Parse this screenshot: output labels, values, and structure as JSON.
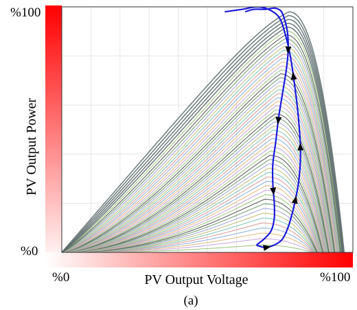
{
  "figure": {
    "caption": "(a)"
  },
  "chart_data": {
    "type": "line",
    "title": "",
    "xlabel": "PV Output Voltage",
    "ylabel": "PV Output Power",
    "xlim": [
      0,
      100
    ],
    "ylim": [
      0,
      100
    ],
    "x_ticks": [
      {
        "value": 0,
        "label": "%0"
      },
      {
        "value": 100,
        "label": "%100"
      }
    ],
    "y_ticks": [
      {
        "value": 0,
        "label": "%0"
      },
      {
        "value": 100,
        "label": "%100"
      }
    ],
    "grid": true,
    "x_axis_gradient": {
      "from": "#ffffff",
      "to": "#ff0000"
    },
    "y_axis_gradient": {
      "from": "#ffffff",
      "to": "#ff0000"
    },
    "pv_curve_family": {
      "count": 56,
      "peak_voltage_min": 68,
      "peak_voltage_max": 78,
      "peak_power_min": 3,
      "peak_power_max": 98,
      "open_circuit_voltage_min": 86,
      "open_circuit_voltage_max": 97,
      "color_palette": [
        "#8fbf6f",
        "#c59bd8",
        "#e0b070",
        "#7fa7d8",
        "#d88f8f",
        "#6fbfa8",
        "#b8b86a",
        "#9a9ad8",
        "#5f8f5f",
        "#444444"
      ]
    },
    "series": [
      {
        "color": "#1a1adc",
        "x": [
          63,
          66,
          70,
          73,
          74.5,
          75.5,
          76.5,
          77.5,
          77.8,
          77.2,
          76,
          74.5,
          73.5,
          72.5,
          72.5,
          73,
          73,
          72,
          70,
          68,
          67,
          68,
          70,
          73,
          75.5,
          77,
          78.5,
          80,
          81.5,
          82,
          81.2,
          80,
          78.5,
          76.5,
          74.5,
          71,
          67,
          62,
          56
        ],
        "y": [
          98,
          99,
          99,
          99.5,
          99,
          98,
          95,
          90,
          83,
          75,
          66,
          55,
          45,
          36,
          28,
          20,
          14,
          9,
          6,
          4,
          3,
          2.5,
          2,
          3,
          5,
          8,
          13,
          20,
          30,
          42,
          56,
          68,
          80,
          90,
          96,
          99,
          100,
          99,
          98
        ],
        "note": ""
      }
    ],
    "annotations": []
  }
}
